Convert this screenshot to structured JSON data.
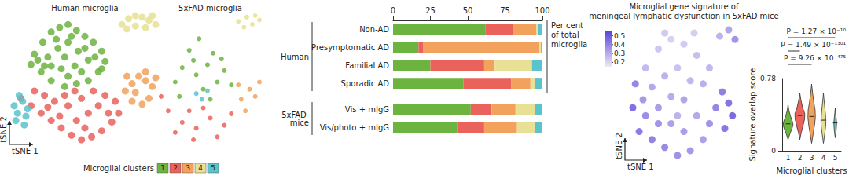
{
  "chart_data": [
    {
      "type": "scatter",
      "title": "Human microglia",
      "xlabel": "tSNE 1",
      "ylabel": "tSNE 2",
      "tick_labels": false,
      "legend": "bottom",
      "legend_title": "Microglial clusters",
      "series": [
        {
          "name": "1",
          "color": "#6db33f",
          "values": [
            [
              20,
              70
            ],
            [
              25,
              78
            ],
            [
              30,
              85
            ],
            [
              35,
              88
            ],
            [
              40,
              90
            ],
            [
              45,
              86
            ],
            [
              50,
              82
            ],
            [
              55,
              78
            ],
            [
              60,
              72
            ],
            [
              62,
              65
            ],
            [
              58,
              58
            ],
            [
              52,
              52
            ],
            [
              45,
              50
            ],
            [
              38,
              48
            ],
            [
              30,
              52
            ],
            [
              24,
              58
            ],
            [
              18,
              63
            ],
            [
              28,
              68
            ],
            [
              34,
              74
            ],
            [
              40,
              78
            ],
            [
              46,
              72
            ],
            [
              52,
              66
            ],
            [
              44,
              62
            ],
            [
              36,
              60
            ],
            [
              30,
              62
            ],
            [
              48,
              58
            ],
            [
              56,
              68
            ],
            [
              38,
              68
            ],
            [
              42,
              82
            ],
            [
              26,
              62
            ],
            [
              33,
              80
            ],
            [
              50,
              74
            ],
            [
              22,
              66
            ],
            [
              60,
              60
            ],
            [
              40,
              55
            ]
          ]
        },
        {
          "name": "2",
          "color": "#e9625b",
          "values": [
            [
              12,
              40
            ],
            [
              18,
              35
            ],
            [
              24,
              30
            ],
            [
              30,
              25
            ],
            [
              36,
              20
            ],
            [
              42,
              15
            ],
            [
              48,
              12
            ],
            [
              54,
              14
            ],
            [
              60,
              18
            ],
            [
              66,
              24
            ],
            [
              70,
              30
            ],
            [
              68,
              38
            ],
            [
              62,
              42
            ],
            [
              55,
              45
            ],
            [
              48,
              40
            ],
            [
              40,
              35
            ],
            [
              32,
              38
            ],
            [
              26,
              42
            ],
            [
              20,
              45
            ],
            [
              35,
              28
            ],
            [
              45,
              25
            ],
            [
              52,
              30
            ],
            [
              58,
              35
            ],
            [
              64,
              30
            ],
            [
              44,
              45
            ],
            [
              38,
              42
            ],
            [
              28,
              34
            ],
            [
              50,
              20
            ]
          ]
        },
        {
          "name": "3",
          "color": "#f2a25c",
          "values": [
            [
              74,
              45
            ],
            [
              78,
              50
            ],
            [
              82,
              55
            ],
            [
              86,
              52
            ],
            [
              90,
              48
            ],
            [
              88,
              40
            ],
            [
              84,
              36
            ],
            [
              78,
              38
            ],
            [
              75,
              55
            ],
            [
              80,
              44
            ],
            [
              86,
              58
            ],
            [
              92,
              54
            ]
          ]
        },
        {
          "name": "4",
          "color": "#e8e094",
          "values": [
            [
              72,
              90
            ],
            [
              76,
              94
            ],
            [
              80,
              96
            ],
            [
              84,
              95
            ],
            [
              88,
              93
            ],
            [
              92,
              90
            ],
            [
              86,
              88
            ],
            [
              80,
              89
            ],
            [
              75,
              87
            ],
            [
              90,
              96
            ]
          ]
        },
        {
          "name": "5",
          "color": "#5bc3cb",
          "values": [
            [
              8,
              35
            ],
            [
              10,
              30
            ],
            [
              13,
              38
            ],
            [
              15,
              28
            ],
            [
              11,
              42
            ],
            [
              16,
              33
            ],
            [
              9,
              25
            ],
            [
              14,
              22
            ]
          ]
        }
      ]
    },
    {
      "type": "scatter",
      "title": "5xFAD microglia",
      "tick_labels": false,
      "series": [
        {
          "name": "1",
          "color": "#6db33f",
          "values": [
            [
              30,
              60
            ],
            [
              40,
              55
            ],
            [
              48,
              62
            ],
            [
              55,
              50
            ],
            [
              35,
              72
            ],
            [
              45,
              45
            ],
            [
              60,
              58
            ],
            [
              25,
              50
            ],
            [
              52,
              70
            ],
            [
              42,
              80
            ],
            [
              38,
              65
            ],
            [
              65,
              48
            ],
            [
              28,
              40
            ],
            [
              50,
              38
            ],
            [
              58,
              66
            ]
          ]
        },
        {
          "name": "2",
          "color": "#e9625b",
          "values": [
            [
              20,
              30
            ],
            [
              30,
              22
            ],
            [
              40,
              18
            ],
            [
              50,
              25
            ],
            [
              60,
              20
            ],
            [
              35,
              30
            ],
            [
              45,
              32
            ],
            [
              25,
              15
            ],
            [
              55,
              12
            ],
            [
              65,
              28
            ],
            [
              15,
              40
            ],
            [
              38,
              10
            ]
          ]
        },
        {
          "name": "3",
          "color": "#f2a25c",
          "values": [
            [
              72,
              38
            ],
            [
              78,
              45
            ],
            [
              82,
              40
            ],
            [
              75,
              30
            ],
            [
              85,
              50
            ],
            [
              70,
              48
            ]
          ]
        },
        {
          "name": "4",
          "color": "#e8e094",
          "values": [
            [
              70,
              92
            ],
            [
              76,
              95
            ],
            [
              80,
              90
            ],
            [
              74,
              88
            ],
            [
              85,
              93
            ],
            [
              82,
              96
            ]
          ]
        },
        {
          "name": "5",
          "color": "#5bc3cb",
          "values": [
            [
              40,
              42
            ],
            [
              44,
              38
            ],
            [
              48,
              44
            ]
          ]
        }
      ]
    },
    {
      "type": "bar",
      "orientation": "horizontal",
      "stacked": true,
      "grid": false,
      "xlabel": "Per cent of total microglia",
      "categories": [
        "Non-AD",
        "Presymptomatic AD",
        "Familial AD",
        "Sporadic AD",
        "Vis + mIgG",
        "Vis/photo + mIgG"
      ],
      "groups": [
        "Human",
        "Human",
        "Human",
        "Human",
        "5xFAD mice",
        "5xFAD mice"
      ],
      "xlim": [
        0,
        100
      ],
      "xticks": [
        0,
        25,
        50,
        75,
        100
      ],
      "series": [
        {
          "name": "1",
          "color": "#6db33f",
          "values": [
            62,
            17,
            25,
            47,
            52,
            43
          ]
        },
        {
          "name": "2",
          "color": "#e9625b",
          "values": [
            18,
            3,
            36,
            32,
            14,
            18
          ]
        },
        {
          "name": "3",
          "color": "#f2a25c",
          "values": [
            16,
            78,
            7,
            13,
            16,
            22
          ]
        },
        {
          "name": "4",
          "color": "#e8e094",
          "values": [
            1,
            1,
            25,
            3,
            13,
            12
          ]
        },
        {
          "name": "5",
          "color": "#5bc3cb",
          "values": [
            3,
            1,
            7,
            5,
            5,
            5
          ]
        }
      ]
    },
    {
      "type": "scatter",
      "title": "Microglial gene signature of\nmeningeal lymphatic dysfunction in 5xFAD mice",
      "xlabel": "tSNE 1",
      "ylabel": "tSNE 2",
      "tick_labels": false,
      "colorbar": {
        "range": [
          0.15,
          0.55
        ],
        "ticks": [
          0.2,
          0.3,
          0.4,
          0.5
        ]
      },
      "values": [
        [
          20,
          70,
          0.28
        ],
        [
          30,
          82,
          0.25
        ],
        [
          40,
          88,
          0.22
        ],
        [
          50,
          85,
          0.24
        ],
        [
          60,
          78,
          0.27
        ],
        [
          45,
          70,
          0.26
        ],
        [
          35,
          65,
          0.3
        ],
        [
          25,
          58,
          0.33
        ],
        [
          55,
          62,
          0.29
        ],
        [
          65,
          60,
          0.31
        ],
        [
          50,
          50,
          0.34
        ],
        [
          40,
          52,
          0.32
        ],
        [
          30,
          45,
          0.36
        ],
        [
          20,
          40,
          0.4
        ],
        [
          15,
          30,
          0.45
        ],
        [
          25,
          25,
          0.43
        ],
        [
          35,
          20,
          0.41
        ],
        [
          45,
          15,
          0.39
        ],
        [
          55,
          18,
          0.37
        ],
        [
          65,
          25,
          0.35
        ],
        [
          70,
          35,
          0.38
        ],
        [
          75,
          45,
          0.42
        ],
        [
          80,
          55,
          0.44
        ],
        [
          85,
          48,
          0.47
        ],
        [
          88,
          40,
          0.5
        ],
        [
          82,
          32,
          0.46
        ],
        [
          78,
          90,
          0.3
        ],
        [
          85,
          94,
          0.34
        ],
        [
          90,
          88,
          0.38
        ],
        [
          60,
          40,
          0.33
        ],
        [
          40,
          35,
          0.35
        ],
        [
          30,
          35,
          0.38
        ],
        [
          50,
          30,
          0.36
        ],
        [
          18,
          50,
          0.37
        ],
        [
          12,
          60,
          0.42
        ],
        [
          10,
          45,
          0.48
        ],
        [
          70,
          70,
          0.29
        ],
        [
          58,
          92,
          0.23
        ],
        [
          35,
          92,
          0.24
        ],
        [
          45,
          40,
          0.3
        ]
      ]
    },
    {
      "type": "violin",
      "xlabel": "Microglial clusters",
      "ylabel": "Signature overlap score",
      "categories": [
        "1",
        "2",
        "3",
        "4",
        "5"
      ],
      "colors": [
        "#6db33f",
        "#e9625b",
        "#f2a25c",
        "#e8e094",
        "#5bc3cb"
      ],
      "ylim": [
        0,
        0.78
      ],
      "yticks": [
        0,
        0.78
      ],
      "violins": [
        {
          "y": [
            0.12,
            0.18,
            0.24,
            0.28,
            0.32,
            0.38,
            0.44,
            0.5
          ],
          "density": [
            0,
            0.35,
            0.8,
            1,
            0.85,
            0.45,
            0.15,
            0
          ],
          "median": 0.29
        },
        {
          "y": [
            0.12,
            0.2,
            0.28,
            0.34,
            0.4,
            0.46,
            0.54,
            0.62
          ],
          "density": [
            0,
            0.3,
            0.7,
            0.95,
            1,
            0.6,
            0.25,
            0
          ],
          "median": 0.38
        },
        {
          "y": [
            0.08,
            0.18,
            0.28,
            0.36,
            0.44,
            0.52,
            0.62,
            0.72
          ],
          "density": [
            0,
            0.3,
            0.6,
            0.75,
            0.7,
            0.45,
            0.2,
            0
          ],
          "median": 0.37
        },
        {
          "y": [
            0.08,
            0.18,
            0.26,
            0.32,
            0.4,
            0.48,
            0.56,
            0.62
          ],
          "density": [
            0,
            0.25,
            0.45,
            0.5,
            0.4,
            0.25,
            0.1,
            0
          ],
          "median": 0.33
        },
        {
          "y": [
            0.14,
            0.2,
            0.26,
            0.3,
            0.34,
            0.4,
            0.46
          ],
          "density": [
            0,
            0.15,
            0.25,
            0.28,
            0.22,
            0.1,
            0
          ],
          "median": 0.3
        }
      ],
      "annotations": [
        {
          "text": "P = 1.27 × 10⁻¹⁰",
          "from": "1",
          "to": "5"
        },
        {
          "text": "P = 1.49 × 10⁻¹³⁰¹",
          "from": "1",
          "to": "2"
        },
        {
          "text": "P = 9.26 × 10⁻⁴⁷⁵",
          "from": "1",
          "to": "3"
        }
      ]
    }
  ]
}
